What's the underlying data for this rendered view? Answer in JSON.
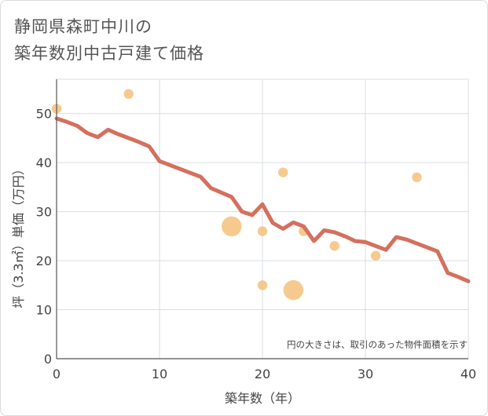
{
  "title_line1": "静岡県森町中川の",
  "title_line2": "築年数別中古戸建て価格",
  "chart_data": {
    "type": "line",
    "xlabel": "築年数（年）",
    "ylabel": "坪（3.3㎡）単価（万円）",
    "xlim": [
      0,
      40
    ],
    "ylim": [
      0,
      57
    ],
    "xticks": [
      0,
      10,
      20,
      30,
      40
    ],
    "yticks": [
      0,
      10,
      20,
      30,
      40,
      50
    ],
    "grid": true,
    "note": "円の大きさは、取引のあった物件面積を示す",
    "colors": {
      "line": "#d4705e",
      "bubble": "#f5c17a",
      "grid": "#d8dde6",
      "axis": "#555555"
    },
    "trend": {
      "x": [
        0,
        1,
        2,
        3,
        4,
        5,
        6,
        7,
        8,
        9,
        10,
        11,
        12,
        13,
        14,
        15,
        16,
        17,
        18,
        19,
        20,
        21,
        22,
        23,
        24,
        25,
        26,
        27,
        28,
        29,
        30,
        31,
        32,
        33,
        34,
        35,
        36,
        37,
        38,
        39,
        40
      ],
      "y": [
        49,
        48.3,
        47.5,
        46,
        45.2,
        46.7,
        45.8,
        45,
        44.2,
        43.3,
        40.3,
        39.5,
        38.7,
        37.9,
        37.1,
        34.8,
        33.9,
        33,
        30,
        29.3,
        31.5,
        27.7,
        26.5,
        27.8,
        27,
        24,
        26.2,
        25.8,
        25,
        24,
        23.8,
        23,
        22.2,
        24.8,
        24.3,
        23.5,
        22.7,
        21.9,
        17.5,
        16.7,
        15.8
      ]
    },
    "points": [
      {
        "x": 0,
        "y": 51,
        "size": 1
      },
      {
        "x": 7,
        "y": 54,
        "size": 1
      },
      {
        "x": 17,
        "y": 27,
        "size": 4.2
      },
      {
        "x": 20,
        "y": 26,
        "size": 1
      },
      {
        "x": 20,
        "y": 15,
        "size": 1
      },
      {
        "x": 22,
        "y": 38,
        "size": 1
      },
      {
        "x": 23,
        "y": 14,
        "size": 4.2
      },
      {
        "x": 24,
        "y": 26,
        "size": 1
      },
      {
        "x": 27,
        "y": 23,
        "size": 1
      },
      {
        "x": 31,
        "y": 21,
        "size": 1
      },
      {
        "x": 35,
        "y": 37,
        "size": 1
      }
    ]
  }
}
